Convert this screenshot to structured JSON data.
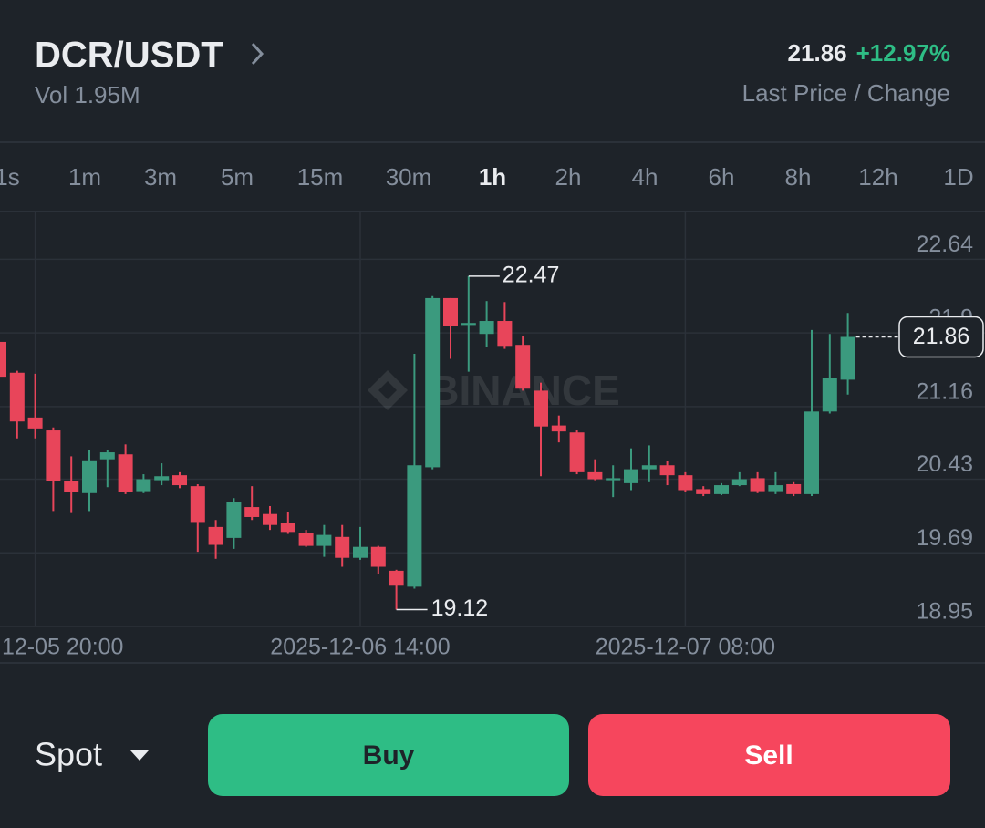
{
  "header": {
    "pair": "DCR/USDT",
    "volume": "Vol 1.95M",
    "last_price": "21.86",
    "change": "+12.97%",
    "caption": "Last Price / Change"
  },
  "intervals": {
    "items": [
      "1s",
      "1m",
      "3m",
      "5m",
      "15m",
      "30m",
      "1h",
      "2h",
      "4h",
      "6h",
      "8h",
      "12h",
      "1D"
    ],
    "selected": 6
  },
  "chart_data": {
    "type": "candlestick",
    "watermark": "BINANCE",
    "categories": [
      null,
      null,
      "12-05 20:00",
      null,
      null,
      null,
      null,
      null,
      null,
      null,
      null,
      null,
      null,
      null,
      null,
      null,
      null,
      null,
      null,
      null,
      "2025-12-06 14:00",
      null,
      null,
      null,
      null,
      null,
      null,
      null,
      null,
      null,
      null,
      null,
      null,
      null,
      null,
      null,
      null,
      null,
      "2025-12-07 08:00",
      null,
      null,
      null,
      null,
      null,
      null,
      null,
      null,
      null
    ],
    "open": [
      21.81,
      21.5,
      21.05,
      20.92,
      20.41,
      20.29,
      20.63,
      20.68,
      20.31,
      20.42,
      20.47,
      20.36,
      19.95,
      19.84,
      20.15,
      20.08,
      19.99,
      19.89,
      19.76,
      19.85,
      19.64,
      19.75,
      19.51,
      19.35,
      20.55,
      22.25,
      21.98,
      21.89,
      22.02,
      21.78,
      21.32,
      20.97,
      20.9,
      20.5,
      20.42,
      20.39,
      20.53,
      20.57,
      20.47,
      20.33,
      20.28,
      20.37,
      20.44,
      20.31,
      20.38,
      20.28,
      21.11,
      21.43
    ],
    "high": [
      21.85,
      21.52,
      21.49,
      20.95,
      20.66,
      20.72,
      20.72,
      20.78,
      20.48,
      20.59,
      20.5,
      20.38,
      20.02,
      20.24,
      20.36,
      20.16,
      20.1,
      19.92,
      19.97,
      19.97,
      19.95,
      19.76,
      19.52,
      21.69,
      22.27,
      22.25,
      22.47,
      22.22,
      22.21,
      21.87,
      21.4,
      21.07,
      20.92,
      20.63,
      20.57,
      20.74,
      20.77,
      20.61,
      20.5,
      20.36,
      20.39,
      20.5,
      20.5,
      20.5,
      20.4,
      21.93,
      21.89,
      22.1
    ],
    "low": [
      21.4,
      20.84,
      20.84,
      20.11,
      20.09,
      20.11,
      20.35,
      20.28,
      20.29,
      20.37,
      20.34,
      19.7,
      19.63,
      19.73,
      20.02,
      19.92,
      19.88,
      19.75,
      19.65,
      19.55,
      19.62,
      19.48,
      19.12,
      19.33,
      20.53,
      21.64,
      21.51,
      21.76,
      21.74,
      21.32,
      20.46,
      20.8,
      20.48,
      20.42,
      20.25,
      20.32,
      20.4,
      20.37,
      20.3,
      20.26,
      20.27,
      20.36,
      20.29,
      20.28,
      20.26,
      20.26,
      21.09,
      21.28
    ],
    "close": [
      21.46,
      21.01,
      20.94,
      20.41,
      20.3,
      20.62,
      20.7,
      20.3,
      20.43,
      20.46,
      20.37,
      20.0,
      19.77,
      20.2,
      20.05,
      19.97,
      19.9,
      19.76,
      19.87,
      19.64,
      19.75,
      19.55,
      19.36,
      20.57,
      22.25,
      21.97,
      22.0,
      22.02,
      21.77,
      21.34,
      20.96,
      20.91,
      20.5,
      20.43,
      20.44,
      20.53,
      20.57,
      20.47,
      20.32,
      20.28,
      20.37,
      20.43,
      20.31,
      20.37,
      20.28,
      21.11,
      21.45,
      21.86
    ],
    "up_color": "#3b9a7e",
    "down_color": "#e8455a",
    "ylim": [
      18.95,
      23.12
    ],
    "yticks": [
      22.64,
      21.9,
      21.16,
      20.43,
      19.69,
      18.95
    ],
    "grid": true,
    "max_marker": 22.47,
    "min_marker": 19.12,
    "last_price": 21.86
  },
  "footer": {
    "market": "Spot",
    "buy": "Buy",
    "sell": "Sell"
  }
}
